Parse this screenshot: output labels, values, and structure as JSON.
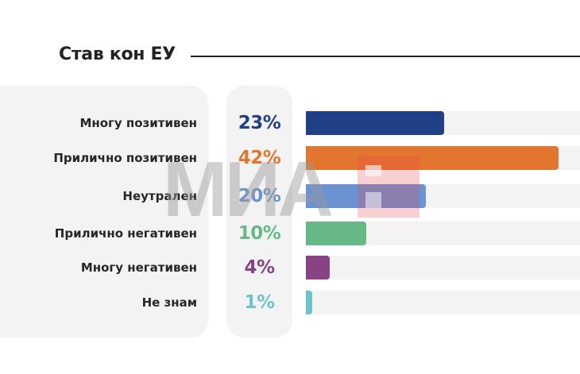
{
  "title": "Став кон ЕУ",
  "chart_data": {
    "type": "bar",
    "orientation": "horizontal",
    "title": "Став кон ЕУ",
    "categories": [
      "Многу позитивен",
      "Прилично позитивен",
      "Неутрален",
      "Прилично негативен",
      "Многу негативен",
      "Не знам"
    ],
    "values": [
      23,
      42,
      20,
      10,
      4,
      1
    ],
    "value_labels": [
      "23%",
      "42%",
      "20%",
      "10%",
      "4%",
      "1%"
    ],
    "colors": [
      "#1f3f87",
      "#e3762f",
      "#6b93d1",
      "#66b887",
      "#874383",
      "#6dc3cb"
    ],
    "track_color": "#f3f3f3",
    "unit": "%",
    "grid": false
  },
  "watermark": {
    "logo_text": "МИА",
    "color": "#9a9a9a",
    "accent": "#e8424b"
  }
}
